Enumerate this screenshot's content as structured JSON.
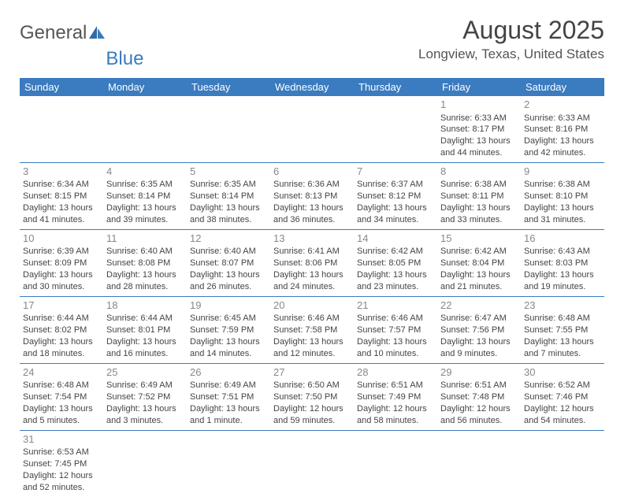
{
  "brand": {
    "part1": "General",
    "part2": "Blue"
  },
  "title": "August 2025",
  "location": "Longview, Texas, United States",
  "day_headers": [
    "Sunday",
    "Monday",
    "Tuesday",
    "Wednesday",
    "Thursday",
    "Friday",
    "Saturday"
  ],
  "colors": {
    "header_bg": "#3b7bbf",
    "header_text": "#ffffff",
    "body_text": "#444444",
    "daynum": "#888888",
    "row_border": "#3b7bbf",
    "background": "#ffffff"
  },
  "typography": {
    "title_fontsize": 32,
    "location_fontsize": 17,
    "header_fontsize": 13,
    "cell_fontsize": 11,
    "daynum_fontsize": 13
  },
  "weeks": [
    [
      null,
      null,
      null,
      null,
      null,
      {
        "day": "1",
        "sunrise": "Sunrise: 6:33 AM",
        "sunset": "Sunset: 8:17 PM",
        "daylight1": "Daylight: 13 hours",
        "daylight2": "and 44 minutes."
      },
      {
        "day": "2",
        "sunrise": "Sunrise: 6:33 AM",
        "sunset": "Sunset: 8:16 PM",
        "daylight1": "Daylight: 13 hours",
        "daylight2": "and 42 minutes."
      }
    ],
    [
      {
        "day": "3",
        "sunrise": "Sunrise: 6:34 AM",
        "sunset": "Sunset: 8:15 PM",
        "daylight1": "Daylight: 13 hours",
        "daylight2": "and 41 minutes."
      },
      {
        "day": "4",
        "sunrise": "Sunrise: 6:35 AM",
        "sunset": "Sunset: 8:14 PM",
        "daylight1": "Daylight: 13 hours",
        "daylight2": "and 39 minutes."
      },
      {
        "day": "5",
        "sunrise": "Sunrise: 6:35 AM",
        "sunset": "Sunset: 8:14 PM",
        "daylight1": "Daylight: 13 hours",
        "daylight2": "and 38 minutes."
      },
      {
        "day": "6",
        "sunrise": "Sunrise: 6:36 AM",
        "sunset": "Sunset: 8:13 PM",
        "daylight1": "Daylight: 13 hours",
        "daylight2": "and 36 minutes."
      },
      {
        "day": "7",
        "sunrise": "Sunrise: 6:37 AM",
        "sunset": "Sunset: 8:12 PM",
        "daylight1": "Daylight: 13 hours",
        "daylight2": "and 34 minutes."
      },
      {
        "day": "8",
        "sunrise": "Sunrise: 6:38 AM",
        "sunset": "Sunset: 8:11 PM",
        "daylight1": "Daylight: 13 hours",
        "daylight2": "and 33 minutes."
      },
      {
        "day": "9",
        "sunrise": "Sunrise: 6:38 AM",
        "sunset": "Sunset: 8:10 PM",
        "daylight1": "Daylight: 13 hours",
        "daylight2": "and 31 minutes."
      }
    ],
    [
      {
        "day": "10",
        "sunrise": "Sunrise: 6:39 AM",
        "sunset": "Sunset: 8:09 PM",
        "daylight1": "Daylight: 13 hours",
        "daylight2": "and 30 minutes."
      },
      {
        "day": "11",
        "sunrise": "Sunrise: 6:40 AM",
        "sunset": "Sunset: 8:08 PM",
        "daylight1": "Daylight: 13 hours",
        "daylight2": "and 28 minutes."
      },
      {
        "day": "12",
        "sunrise": "Sunrise: 6:40 AM",
        "sunset": "Sunset: 8:07 PM",
        "daylight1": "Daylight: 13 hours",
        "daylight2": "and 26 minutes."
      },
      {
        "day": "13",
        "sunrise": "Sunrise: 6:41 AM",
        "sunset": "Sunset: 8:06 PM",
        "daylight1": "Daylight: 13 hours",
        "daylight2": "and 24 minutes."
      },
      {
        "day": "14",
        "sunrise": "Sunrise: 6:42 AM",
        "sunset": "Sunset: 8:05 PM",
        "daylight1": "Daylight: 13 hours",
        "daylight2": "and 23 minutes."
      },
      {
        "day": "15",
        "sunrise": "Sunrise: 6:42 AM",
        "sunset": "Sunset: 8:04 PM",
        "daylight1": "Daylight: 13 hours",
        "daylight2": "and 21 minutes."
      },
      {
        "day": "16",
        "sunrise": "Sunrise: 6:43 AM",
        "sunset": "Sunset: 8:03 PM",
        "daylight1": "Daylight: 13 hours",
        "daylight2": "and 19 minutes."
      }
    ],
    [
      {
        "day": "17",
        "sunrise": "Sunrise: 6:44 AM",
        "sunset": "Sunset: 8:02 PM",
        "daylight1": "Daylight: 13 hours",
        "daylight2": "and 18 minutes."
      },
      {
        "day": "18",
        "sunrise": "Sunrise: 6:44 AM",
        "sunset": "Sunset: 8:01 PM",
        "daylight1": "Daylight: 13 hours",
        "daylight2": "and 16 minutes."
      },
      {
        "day": "19",
        "sunrise": "Sunrise: 6:45 AM",
        "sunset": "Sunset: 7:59 PM",
        "daylight1": "Daylight: 13 hours",
        "daylight2": "and 14 minutes."
      },
      {
        "day": "20",
        "sunrise": "Sunrise: 6:46 AM",
        "sunset": "Sunset: 7:58 PM",
        "daylight1": "Daylight: 13 hours",
        "daylight2": "and 12 minutes."
      },
      {
        "day": "21",
        "sunrise": "Sunrise: 6:46 AM",
        "sunset": "Sunset: 7:57 PM",
        "daylight1": "Daylight: 13 hours",
        "daylight2": "and 10 minutes."
      },
      {
        "day": "22",
        "sunrise": "Sunrise: 6:47 AM",
        "sunset": "Sunset: 7:56 PM",
        "daylight1": "Daylight: 13 hours",
        "daylight2": "and 9 minutes."
      },
      {
        "day": "23",
        "sunrise": "Sunrise: 6:48 AM",
        "sunset": "Sunset: 7:55 PM",
        "daylight1": "Daylight: 13 hours",
        "daylight2": "and 7 minutes."
      }
    ],
    [
      {
        "day": "24",
        "sunrise": "Sunrise: 6:48 AM",
        "sunset": "Sunset: 7:54 PM",
        "daylight1": "Daylight: 13 hours",
        "daylight2": "and 5 minutes."
      },
      {
        "day": "25",
        "sunrise": "Sunrise: 6:49 AM",
        "sunset": "Sunset: 7:52 PM",
        "daylight1": "Daylight: 13 hours",
        "daylight2": "and 3 minutes."
      },
      {
        "day": "26",
        "sunrise": "Sunrise: 6:49 AM",
        "sunset": "Sunset: 7:51 PM",
        "daylight1": "Daylight: 13 hours",
        "daylight2": "and 1 minute."
      },
      {
        "day": "27",
        "sunrise": "Sunrise: 6:50 AM",
        "sunset": "Sunset: 7:50 PM",
        "daylight1": "Daylight: 12 hours",
        "daylight2": "and 59 minutes."
      },
      {
        "day": "28",
        "sunrise": "Sunrise: 6:51 AM",
        "sunset": "Sunset: 7:49 PM",
        "daylight1": "Daylight: 12 hours",
        "daylight2": "and 58 minutes."
      },
      {
        "day": "29",
        "sunrise": "Sunrise: 6:51 AM",
        "sunset": "Sunset: 7:48 PM",
        "daylight1": "Daylight: 12 hours",
        "daylight2": "and 56 minutes."
      },
      {
        "day": "30",
        "sunrise": "Sunrise: 6:52 AM",
        "sunset": "Sunset: 7:46 PM",
        "daylight1": "Daylight: 12 hours",
        "daylight2": "and 54 minutes."
      }
    ],
    [
      {
        "day": "31",
        "sunrise": "Sunrise: 6:53 AM",
        "sunset": "Sunset: 7:45 PM",
        "daylight1": "Daylight: 12 hours",
        "daylight2": "and 52 minutes."
      },
      null,
      null,
      null,
      null,
      null,
      null
    ]
  ]
}
